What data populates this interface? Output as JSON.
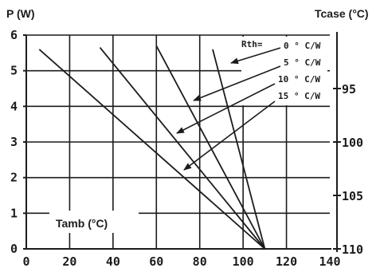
{
  "chart_data": {
    "type": "line",
    "ylabel": "P (W)",
    "y2label": "Tcase (°C)",
    "xlabel": "Tamb (°C)",
    "xlim": [
      0,
      140
    ],
    "ylim": [
      0,
      6
    ],
    "x_ticks": [
      "0",
      "20",
      "40",
      "60",
      "80",
      "100",
      "120",
      "140"
    ],
    "y_ticks": [
      "0",
      "1",
      "2",
      "3",
      "4",
      "5",
      "6"
    ],
    "y2_ticks": [
      {
        "label": "95",
        "p": 4.5
      },
      {
        "label": "100",
        "p": 3.0
      },
      {
        "label": "105",
        "p": 1.5
      },
      {
        "label": "110",
        "p": 0.0
      }
    ],
    "grid": true,
    "legend_title": "Rth=",
    "series": [
      {
        "name": "0 ° C/W",
        "x": [
          110,
          86
        ],
        "y": [
          0,
          5.6
        ]
      },
      {
        "name": "5 ° C/W",
        "x": [
          110,
          60
        ],
        "y": [
          0,
          5.7
        ]
      },
      {
        "name": "10 ° C/W",
        "x": [
          110,
          34
        ],
        "y": [
          0,
          5.65
        ]
      },
      {
        "name": "15 ° C/W",
        "x": [
          110,
          6
        ],
        "y": [
          0,
          5.6
        ]
      }
    ]
  }
}
